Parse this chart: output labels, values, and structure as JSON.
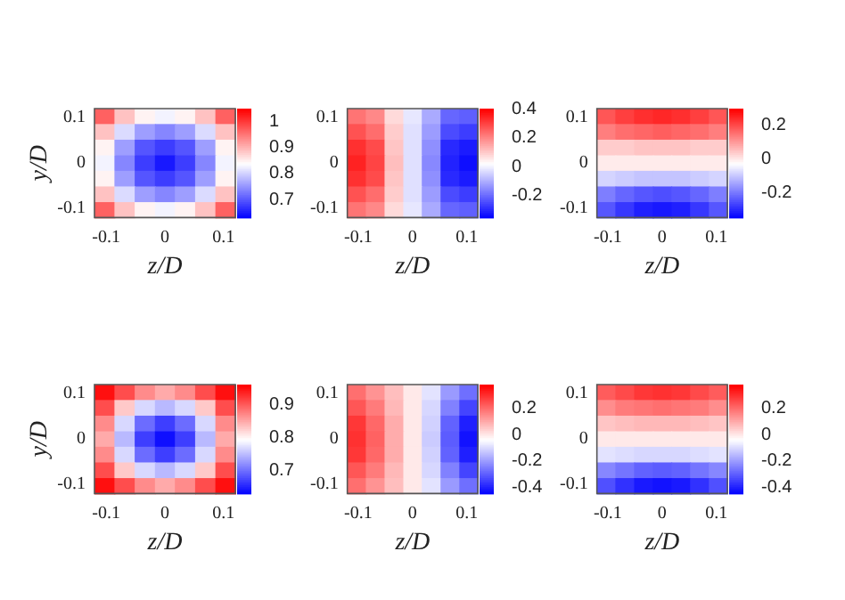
{
  "chart_data": [
    {
      "type": "heatmap",
      "xlabel": "z/D",
      "ylabel": "y/D",
      "x": [
        -0.103,
        -0.069,
        -0.034,
        0,
        0.034,
        0.069,
        0.103
      ],
      "y": [
        0.103,
        0.069,
        0.034,
        0,
        -0.034,
        -0.069,
        -0.103
      ],
      "xlim": [
        -0.12,
        0.12
      ],
      "ylim": [
        -0.12,
        0.12
      ],
      "xticks": [
        -0.1,
        0,
        0.1
      ],
      "yticks": [
        -0.1,
        0,
        0.1
      ],
      "clim": [
        0.63,
        1.05
      ],
      "cticks": [
        0.7,
        0.8,
        0.9,
        1
      ],
      "colors": [
        "#0000ff",
        "#ffffff",
        "#ff0000"
      ],
      "cells": [
        [
          0.97,
          0.89,
          0.85,
          0.83,
          0.85,
          0.89,
          0.97
        ],
        [
          0.89,
          0.81,
          0.76,
          0.74,
          0.76,
          0.81,
          0.89
        ],
        [
          0.85,
          0.76,
          0.7,
          0.68,
          0.7,
          0.76,
          0.85
        ],
        [
          0.83,
          0.74,
          0.68,
          0.65,
          0.68,
          0.74,
          0.83
        ],
        [
          0.85,
          0.76,
          0.7,
          0.68,
          0.7,
          0.76,
          0.85
        ],
        [
          0.89,
          0.81,
          0.76,
          0.74,
          0.76,
          0.81,
          0.89
        ],
        [
          0.97,
          0.89,
          0.85,
          0.83,
          0.85,
          0.89,
          0.97
        ]
      ]
    },
    {
      "type": "heatmap",
      "xlabel": "z/D",
      "x": [
        -0.103,
        -0.069,
        -0.034,
        0,
        0.034,
        0.069,
        0.103
      ],
      "y": [
        0.103,
        0.069,
        0.034,
        0,
        -0.034,
        -0.069,
        -0.103
      ],
      "xlim": [
        -0.12,
        0.12
      ],
      "ylim": [
        -0.12,
        0.12
      ],
      "xticks": [
        -0.1,
        0,
        0.1
      ],
      "yticks": [
        -0.1,
        0,
        0.1
      ],
      "clim": [
        -0.35,
        0.4
      ],
      "cticks": [
        -0.2,
        0,
        0.2,
        0.4
      ],
      "colors": [
        "#0000ff",
        "#ffffff",
        "#ff0000"
      ],
      "cells": [
        [
          0.23,
          0.2,
          0.08,
          -0.01,
          -0.1,
          -0.2,
          -0.21
        ],
        [
          0.28,
          0.24,
          0.1,
          -0.02,
          -0.12,
          -0.24,
          -0.26
        ],
        [
          0.33,
          0.29,
          0.11,
          -0.02,
          -0.14,
          -0.29,
          -0.31
        ],
        [
          0.35,
          0.3,
          0.12,
          -0.02,
          -0.15,
          -0.3,
          -0.33
        ],
        [
          0.33,
          0.29,
          0.11,
          -0.02,
          -0.14,
          -0.29,
          -0.31
        ],
        [
          0.28,
          0.24,
          0.1,
          -0.02,
          -0.12,
          -0.24,
          -0.26
        ],
        [
          0.23,
          0.2,
          0.08,
          -0.01,
          -0.1,
          -0.2,
          -0.21
        ]
      ]
    },
    {
      "type": "heatmap",
      "xlabel": "z/D",
      "x": [
        -0.103,
        -0.069,
        -0.034,
        0,
        0.034,
        0.069,
        0.103
      ],
      "y": [
        0.103,
        0.069,
        0.034,
        0,
        -0.034,
        -0.069,
        -0.103
      ],
      "xlim": [
        -0.12,
        0.12
      ],
      "ylim": [
        -0.12,
        0.12
      ],
      "xticks": [
        -0.1,
        0,
        0.1
      ],
      "yticks": [
        -0.1,
        0,
        0.1
      ],
      "clim": [
        -0.35,
        0.3
      ],
      "cticks": [
        -0.2,
        0,
        0.2
      ],
      "colors": [
        "#0000ff",
        "#ffffff",
        "#ff0000"
      ],
      "cells": [
        [
          0.19,
          0.22,
          0.24,
          0.25,
          0.24,
          0.22,
          0.19
        ],
        [
          0.14,
          0.16,
          0.17,
          0.18,
          0.17,
          0.16,
          0.14
        ],
        [
          0.04,
          0.04,
          0.05,
          0.05,
          0.05,
          0.04,
          0.04
        ],
        [
          0,
          0,
          0,
          0,
          0,
          0,
          0
        ],
        [
          -0.08,
          -0.09,
          -0.1,
          -0.1,
          -0.1,
          -0.09,
          -0.08
        ],
        [
          -0.19,
          -0.22,
          -0.24,
          -0.25,
          -0.24,
          -0.22,
          -0.19
        ],
        [
          -0.24,
          -0.28,
          -0.31,
          -0.32,
          -0.31,
          -0.28,
          -0.24
        ]
      ]
    },
    {
      "type": "heatmap",
      "xlabel": "z/D",
      "ylabel": "y/D",
      "x": [
        -0.103,
        -0.069,
        -0.034,
        0,
        0.034,
        0.069,
        0.103
      ],
      "y": [
        0.103,
        0.069,
        0.034,
        0,
        -0.034,
        -0.069,
        -0.103
      ],
      "xlim": [
        -0.12,
        0.12
      ],
      "ylim": [
        -0.12,
        0.12
      ],
      "xticks": [
        -0.1,
        0,
        0.1
      ],
      "yticks": [
        -0.1,
        0,
        0.1
      ],
      "clim": [
        0.63,
        0.96
      ],
      "cticks": [
        0.7,
        0.8,
        0.9
      ],
      "colors": [
        "#0000ff",
        "#ffffff",
        "#ff0000"
      ],
      "cells": [
        [
          0.95,
          0.91,
          0.87,
          0.85,
          0.87,
          0.91,
          0.95
        ],
        [
          0.91,
          0.83,
          0.77,
          0.75,
          0.77,
          0.83,
          0.91
        ],
        [
          0.87,
          0.77,
          0.7,
          0.67,
          0.7,
          0.77,
          0.87
        ],
        [
          0.85,
          0.75,
          0.67,
          0.64,
          0.67,
          0.75,
          0.85
        ],
        [
          0.87,
          0.77,
          0.7,
          0.67,
          0.7,
          0.77,
          0.87
        ],
        [
          0.91,
          0.83,
          0.77,
          0.75,
          0.77,
          0.83,
          0.91
        ],
        [
          0.95,
          0.91,
          0.87,
          0.85,
          0.87,
          0.91,
          0.95
        ]
      ]
    },
    {
      "type": "heatmap",
      "xlabel": "z/D",
      "x": [
        -0.103,
        -0.069,
        -0.034,
        0,
        0.034,
        0.069,
        0.103
      ],
      "y": [
        0.103,
        0.069,
        0.034,
        0,
        -0.034,
        -0.069,
        -0.103
      ],
      "xlim": [
        -0.12,
        0.12
      ],
      "ylim": [
        -0.12,
        0.12
      ],
      "xticks": [
        -0.1,
        0,
        0.1
      ],
      "yticks": [
        -0.1,
        0,
        0.1
      ],
      "clim": [
        -0.45,
        0.38
      ],
      "cticks": [
        -0.4,
        -0.2,
        0,
        0.2
      ],
      "colors": [
        "#0000ff",
        "#ffffff",
        "#ff0000"
      ],
      "cells": [
        [
          0.2,
          0.14,
          0.07,
          0,
          -0.08,
          -0.2,
          -0.27
        ],
        [
          0.24,
          0.18,
          0.08,
          0,
          -0.1,
          -0.24,
          -0.34
        ],
        [
          0.29,
          0.21,
          0.1,
          0,
          -0.11,
          -0.29,
          -0.4
        ],
        [
          0.3,
          0.22,
          0.1,
          0,
          -0.12,
          -0.3,
          -0.42
        ],
        [
          0.29,
          0.21,
          0.1,
          0,
          -0.11,
          -0.29,
          -0.4
        ],
        [
          0.24,
          0.18,
          0.08,
          0,
          -0.1,
          -0.24,
          -0.34
        ],
        [
          0.2,
          0.14,
          0.07,
          0,
          -0.08,
          -0.2,
          -0.27
        ]
      ]
    },
    {
      "type": "heatmap",
      "xlabel": "z/D",
      "x": [
        -0.103,
        -0.069,
        -0.034,
        0,
        0.034,
        0.069,
        0.103
      ],
      "y": [
        0.103,
        0.069,
        0.034,
        0,
        -0.034,
        -0.069,
        -0.103
      ],
      "xlim": [
        -0.12,
        0.12
      ],
      "ylim": [
        -0.12,
        0.12
      ],
      "xticks": [
        -0.1,
        0,
        0.1
      ],
      "yticks": [
        -0.1,
        0,
        0.1
      ],
      "clim": [
        -0.45,
        0.38
      ],
      "cticks": [
        -0.4,
        -0.2,
        0,
        0.2
      ],
      "colors": [
        "#0000ff",
        "#ffffff",
        "#ff0000"
      ],
      "cells": [
        [
          0.23,
          0.26,
          0.29,
          0.3,
          0.29,
          0.26,
          0.23
        ],
        [
          0.15,
          0.18,
          0.19,
          0.2,
          0.19,
          0.18,
          0.15
        ],
        [
          0.06,
          0.07,
          0.08,
          0.08,
          0.08,
          0.07,
          0.06
        ],
        [
          0,
          0,
          0,
          0,
          0,
          0,
          0
        ],
        [
          -0.08,
          -0.09,
          -0.1,
          -0.1,
          -0.1,
          -0.09,
          -0.08
        ],
        [
          -0.23,
          -0.26,
          -0.29,
          -0.3,
          -0.29,
          -0.26,
          -0.23
        ],
        [
          -0.32,
          -0.37,
          -0.41,
          -0.42,
          -0.41,
          -0.37,
          -0.32
        ]
      ]
    }
  ]
}
